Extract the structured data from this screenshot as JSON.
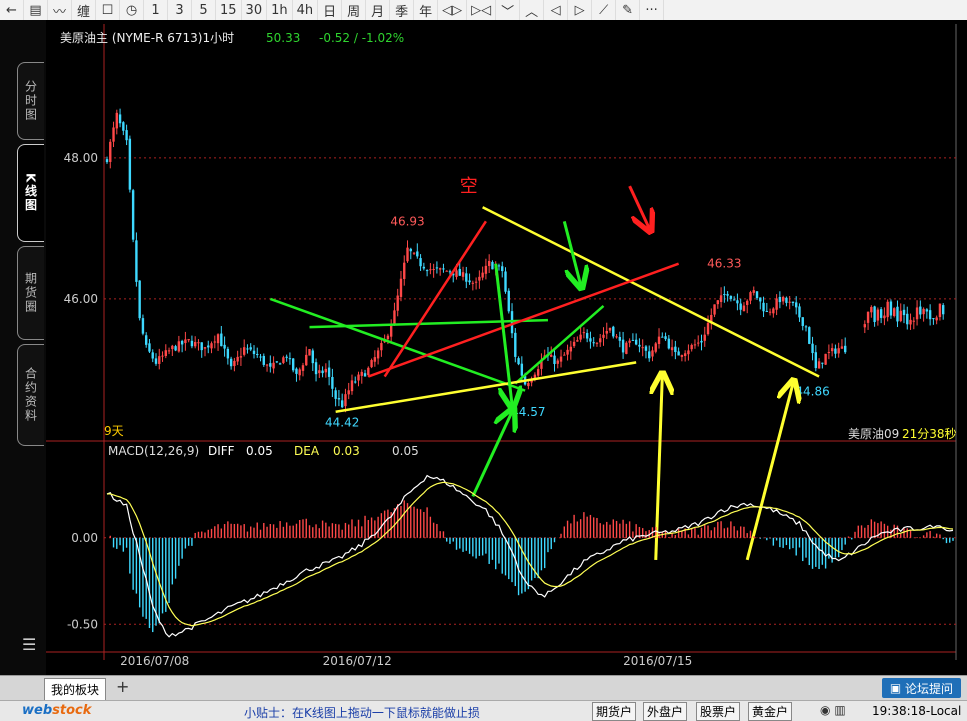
{
  "toolbar": {
    "items": [
      {
        "label": "←",
        "icon": "back-arrow-icon"
      },
      {
        "label": "▤",
        "icon": "table-icon"
      },
      {
        "label": "〰",
        "icon": "line-chart-icon"
      },
      {
        "label": "缠",
        "icon": "chan-icon"
      },
      {
        "label": "☐",
        "icon": "box-icon"
      },
      {
        "label": "◷",
        "icon": "refresh-icon"
      },
      {
        "label": "1"
      },
      {
        "label": "3"
      },
      {
        "label": "5"
      },
      {
        "label": "15"
      },
      {
        "label": "30"
      },
      {
        "label": "1h"
      },
      {
        "label": "4h"
      },
      {
        "label": "日"
      },
      {
        "label": "周"
      },
      {
        "label": "月"
      },
      {
        "label": "季"
      },
      {
        "label": "年"
      },
      {
        "label": "◁▷",
        "icon": "zoom-out-icon"
      },
      {
        "label": "▷◁",
        "icon": "zoom-in-icon"
      },
      {
        "label": "﹀",
        "icon": "chevron-down-icon"
      },
      {
        "label": "︿",
        "icon": "chevron-up-icon"
      },
      {
        "label": "◁",
        "icon": "left-arrow-icon"
      },
      {
        "label": "▷",
        "icon": "right-arrow-icon"
      },
      {
        "label": "⟋",
        "icon": "draw-line-icon"
      },
      {
        "label": "✎",
        "icon": "pencil-icon"
      },
      {
        "label": "···",
        "icon": "more-icon"
      }
    ]
  },
  "side_tabs": [
    "分时图",
    "K线图",
    "期货圈",
    "合约资料"
  ],
  "header": {
    "instrument": "美原油主 (NYME-R 6713)1小时",
    "last": "50.33",
    "change": "-0.52 / -1.02%"
  },
  "annotations": {
    "kong": "空",
    "period_label": "9天",
    "right_label": "美原油09",
    "time_label": "21分38秒"
  },
  "macd": {
    "title": "MACD(12,26,9)",
    "diff_label": "DIFF",
    "diff_value": "0.05",
    "dea_label": "DEA",
    "dea_value": "0.03",
    "macd_value": "0.05"
  },
  "bottom": {
    "tab_label": "我的板块",
    "add_label": "+",
    "forum_label": "论坛提问"
  },
  "status": {
    "logo_main": "web",
    "logo_sub": "stock",
    "tip": "小贴士：在K线图上拖动一下鼠标就能做止损",
    "accounts": [
      "期货户",
      "外盘户",
      "股票户",
      "黄金户"
    ],
    "clock": "19:38:18-Local"
  },
  "colors": {
    "up": "#ff4848",
    "down": "#3ed9ff",
    "diff_line": "#ffffff",
    "dea_line": "#ffff55",
    "trend_green": "#22ee22",
    "trend_yellow": "#ffff30",
    "trend_red": "#ff2020",
    "grid": "#aa2222",
    "axis_text": "#cccccc",
    "date_text": "#cccccc"
  },
  "chart_data": {
    "type": "candlestick",
    "title": "美原油主 (NYME-R 6713)1小时",
    "price_axis": {
      "ticks": [
        48.0,
        46.0
      ],
      "tick_labels": [
        "48.00",
        "46.00"
      ],
      "range": [
        44.0,
        49.6
      ]
    },
    "macd_axis": {
      "ticks": [
        0.0,
        -0.5
      ],
      "tick_labels": [
        "0.00",
        "-0.50"
      ],
      "range": [
        -0.62,
        0.45
      ]
    },
    "x_date_labels": [
      {
        "label": "2016/07/08",
        "index": 4
      },
      {
        "label": "2016/07/12",
        "index": 66
      },
      {
        "label": "2016/07/15",
        "index": 158
      }
    ],
    "price_labels": [
      {
        "text": "46.93",
        "index": 92,
        "value": 46.93,
        "pos": "high"
      },
      {
        "text": "44.42",
        "index": 72,
        "value": 44.42,
        "pos": "low"
      },
      {
        "text": "44.57",
        "index": 129,
        "value": 44.57,
        "pos": "low"
      },
      {
        "text": "46.33",
        "index": 189,
        "value": 46.33,
        "pos": "high"
      },
      {
        "text": "44.86",
        "index": 216,
        "value": 44.86,
        "pos": "low"
      }
    ],
    "anchors": [
      [
        0,
        48.0
      ],
      [
        3,
        48.6
      ],
      [
        6,
        48.2
      ],
      [
        8,
        46.8
      ],
      [
        10,
        45.7
      ],
      [
        12,
        45.3
      ],
      [
        15,
        45.1
      ],
      [
        20,
        45.3
      ],
      [
        25,
        45.4
      ],
      [
        30,
        45.3
      ],
      [
        34,
        45.5
      ],
      [
        38,
        45.0
      ],
      [
        42,
        45.3
      ],
      [
        46,
        45.2
      ],
      [
        50,
        45.0
      ],
      [
        55,
        45.2
      ],
      [
        58,
        44.9
      ],
      [
        62,
        45.3
      ],
      [
        64,
        44.9
      ],
      [
        67,
        45.0
      ],
      [
        70,
        44.6
      ],
      [
        72,
        44.5
      ],
      [
        75,
        44.8
      ],
      [
        80,
        45.0
      ],
      [
        85,
        45.4
      ],
      [
        88,
        45.8
      ],
      [
        92,
        46.7
      ],
      [
        96,
        46.5
      ],
      [
        100,
        46.4
      ],
      [
        105,
        46.4
      ],
      [
        110,
        46.3
      ],
      [
        113,
        46.2
      ],
      [
        117,
        46.5
      ],
      [
        121,
        46.4
      ],
      [
        125,
        45.2
      ],
      [
        128,
        44.8
      ],
      [
        130,
        44.9
      ],
      [
        134,
        45.2
      ],
      [
        138,
        45.1
      ],
      [
        142,
        45.3
      ],
      [
        146,
        45.5
      ],
      [
        150,
        45.4
      ],
      [
        154,
        45.6
      ],
      [
        158,
        45.3
      ],
      [
        162,
        45.4
      ],
      [
        166,
        45.2
      ],
      [
        170,
        45.5
      ],
      [
        174,
        45.2
      ],
      [
        178,
        45.3
      ],
      [
        182,
        45.4
      ],
      [
        186,
        45.9
      ],
      [
        190,
        46.1
      ],
      [
        194,
        45.9
      ],
      [
        198,
        46.1
      ],
      [
        202,
        45.8
      ],
      [
        206,
        46.0
      ],
      [
        210,
        45.9
      ],
      [
        214,
        45.6
      ],
      [
        217,
        45.0
      ],
      [
        220,
        45.2
      ],
      [
        224,
        45.3
      ],
      [
        226,
        45.3
      ]
    ],
    "second_segment": {
      "start_index": 232,
      "end_index": 256,
      "level": 45.8
    },
    "macd_anchors": [
      [
        0,
        0.26
      ],
      [
        6,
        0.18
      ],
      [
        10,
        -0.1
      ],
      [
        14,
        -0.4
      ],
      [
        18,
        -0.56
      ],
      [
        22,
        -0.55
      ],
      [
        30,
        -0.48
      ],
      [
        38,
        -0.4
      ],
      [
        46,
        -0.34
      ],
      [
        54,
        -0.26
      ],
      [
        62,
        -0.18
      ],
      [
        70,
        -0.13
      ],
      [
        78,
        -0.04
      ],
      [
        86,
        0.1
      ],
      [
        92,
        0.25
      ],
      [
        98,
        0.36
      ],
      [
        104,
        0.32
      ],
      [
        110,
        0.24
      ],
      [
        116,
        0.16
      ],
      [
        120,
        0.06
      ],
      [
        124,
        -0.08
      ],
      [
        128,
        -0.26
      ],
      [
        134,
        -0.34
      ],
      [
        140,
        -0.24
      ],
      [
        146,
        -0.14
      ],
      [
        152,
        -0.08
      ],
      [
        158,
        -0.02
      ],
      [
        166,
        0.02
      ],
      [
        174,
        0.04
      ],
      [
        182,
        0.09
      ],
      [
        188,
        0.16
      ],
      [
        196,
        0.2
      ],
      [
        204,
        0.16
      ],
      [
        212,
        0.08
      ],
      [
        218,
        -0.07
      ],
      [
        224,
        -0.14
      ],
      [
        230,
        -0.06
      ],
      [
        236,
        0.02
      ],
      [
        244,
        0.05
      ],
      [
        252,
        0.06
      ]
    ],
    "trend_lines": [
      {
        "color": "green",
        "points": [
          [
            50,
            46.0
          ],
          [
            128,
            44.7
          ]
        ]
      },
      {
        "color": "green",
        "points": [
          [
            62,
            45.6
          ],
          [
            135,
            45.7
          ]
        ]
      },
      {
        "color": "green",
        "points": [
          [
            125,
            44.8
          ],
          [
            152,
            45.9
          ]
        ]
      },
      {
        "color": "yellow",
        "points": [
          [
            70,
            44.4
          ],
          [
            162,
            45.1
          ]
        ]
      },
      {
        "color": "yellow",
        "points": [
          [
            115,
            47.3
          ],
          [
            218,
            44.9
          ]
        ]
      },
      {
        "color": "red",
        "points": [
          [
            85,
            44.9
          ],
          [
            116,
            47.1
          ]
        ]
      },
      {
        "color": "red",
        "points": [
          [
            80,
            44.9
          ],
          [
            175,
            46.5
          ]
        ]
      }
    ],
    "arrows": [
      {
        "color": "green",
        "from": [
          119,
          46.5
        ],
        "to": [
          124,
          44.5
        ]
      },
      {
        "color": "green",
        "from": [
          140,
          47.1
        ],
        "to": [
          145,
          46.2
        ]
      },
      {
        "color": "green",
        "from": [
          112,
          43.2
        ],
        "to": [
          124,
          44.4
        ]
      },
      {
        "color": "yellow",
        "from": [
          168,
          42.3
        ],
        "to": [
          170,
          44.9
        ]
      },
      {
        "color": "yellow",
        "from": [
          196,
          42.3
        ],
        "to": [
          210,
          44.8
        ]
      },
      {
        "color": "red",
        "from": [
          160,
          47.6
        ],
        "to": [
          166,
          47.0
        ]
      }
    ]
  }
}
